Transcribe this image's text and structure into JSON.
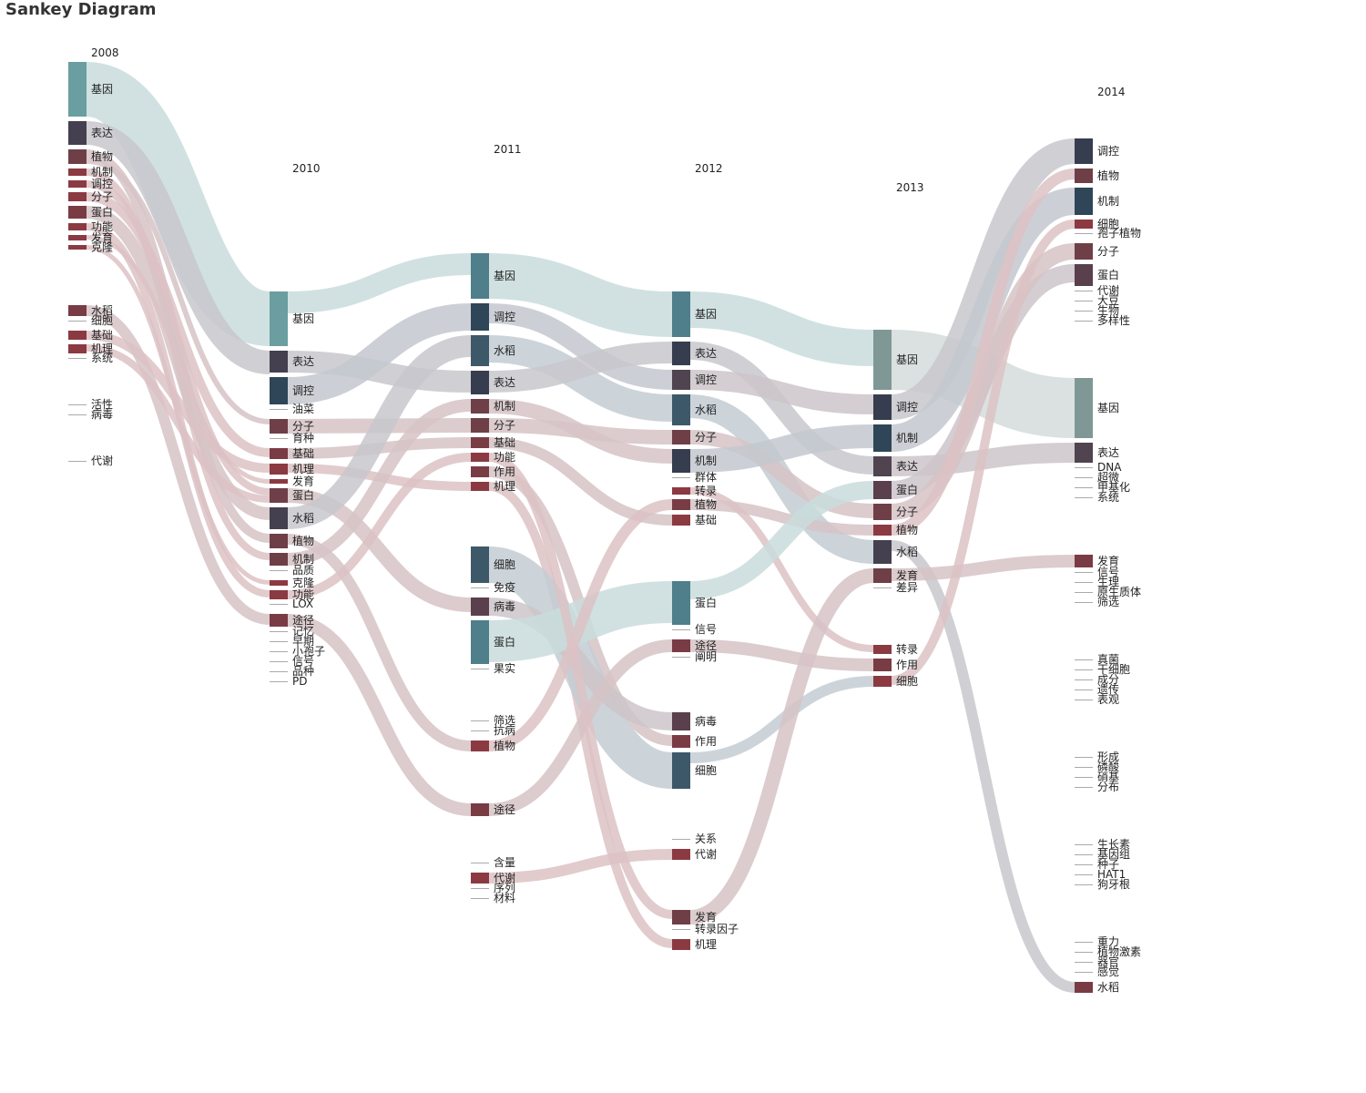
{
  "title": "Sankey Diagram",
  "columns": [
    {
      "year": "2008",
      "nodes": [
        {
          "name": "基因",
          "w": 60,
          "c": "#6a9ea0"
        },
        {
          "name": "表达",
          "w": 26,
          "c": "#44404f"
        },
        {
          "name": "植物",
          "w": 16,
          "c": "#6f3f48"
        },
        {
          "name": "机制",
          "w": 8,
          "c": "#8b3a42"
        },
        {
          "name": "调控",
          "w": 8,
          "c": "#8b3a42"
        },
        {
          "name": "分子",
          "w": 10,
          "c": "#8b3a42"
        },
        {
          "name": "蛋白",
          "w": 14,
          "c": "#7a3c44"
        },
        {
          "name": "功能",
          "w": 8,
          "c": "#8b3a42"
        },
        {
          "name": "发育",
          "w": 6,
          "c": "#8b3a42"
        },
        {
          "name": "克隆",
          "w": 5,
          "c": "#8b3a42"
        },
        {
          "name": "",
          "w": 0,
          "gap": 56
        },
        {
          "name": "水稻",
          "w": 12,
          "c": "#7a3c44"
        },
        {
          "name": "细胞",
          "w": 0
        },
        {
          "name": "基础",
          "w": 10,
          "c": "#8b3a42"
        },
        {
          "name": "机理",
          "w": 10,
          "c": "#8b3a42"
        },
        {
          "name": "系统",
          "w": 0
        },
        {
          "name": "",
          "w": 0,
          "gap": 40
        },
        {
          "name": "活性",
          "w": 0
        },
        {
          "name": "病毒",
          "w": 0
        },
        {
          "name": "",
          "w": 0,
          "gap": 40
        },
        {
          "name": "代谢",
          "w": 0
        }
      ]
    },
    {
      "year": "2010",
      "nodes": [
        {
          "name": "基因",
          "w": 60,
          "c": "#6a9ea0"
        },
        {
          "name": "表达",
          "w": 24,
          "c": "#44404f"
        },
        {
          "name": "调控",
          "w": 30,
          "c": "#2e4657"
        },
        {
          "name": "油菜",
          "w": 0
        },
        {
          "name": "分子",
          "w": 16,
          "c": "#6f3f48"
        },
        {
          "name": "育种",
          "w": 0
        },
        {
          "name": "基础",
          "w": 12,
          "c": "#7a3c44"
        },
        {
          "name": "机理",
          "w": 12,
          "c": "#8b3a42"
        },
        {
          "name": "发育",
          "w": 5,
          "c": "#8b3a42"
        },
        {
          "name": "蛋白",
          "w": 16,
          "c": "#6f3f48"
        },
        {
          "name": "水稻",
          "w": 24,
          "c": "#44404f"
        },
        {
          "name": "植物",
          "w": 16,
          "c": "#6f3f48"
        },
        {
          "name": "机制",
          "w": 14,
          "c": "#6f3f48"
        },
        {
          "name": "品质",
          "w": 0
        },
        {
          "name": "克隆",
          "w": 6,
          "c": "#8b3a42"
        },
        {
          "name": "功能",
          "w": 10,
          "c": "#8b3a42"
        },
        {
          "name": "LOX",
          "w": 0
        },
        {
          "name": "途径",
          "w": 14,
          "c": "#7a3c44"
        },
        {
          "name": "记忆",
          "w": 0
        },
        {
          "name": "早期",
          "w": 0
        },
        {
          "name": "小孢子",
          "w": 0
        },
        {
          "name": "信号",
          "w": 0
        },
        {
          "name": "品种",
          "w": 0
        },
        {
          "name": "PD",
          "w": 0
        }
      ]
    },
    {
      "year": "2011",
      "nodes": [
        {
          "name": "基因",
          "w": 50,
          "c": "#4e7f8a"
        },
        {
          "name": "调控",
          "w": 30,
          "c": "#2e4657"
        },
        {
          "name": "水稻",
          "w": 34,
          "c": "#3d5868"
        },
        {
          "name": "表达",
          "w": 26,
          "c": "#363d4f"
        },
        {
          "name": "机制",
          "w": 16,
          "c": "#6f3f48"
        },
        {
          "name": "分子",
          "w": 16,
          "c": "#6f3f48"
        },
        {
          "name": "基础",
          "w": 12,
          "c": "#7a3c44"
        },
        {
          "name": "功能",
          "w": 10,
          "c": "#8b3a42"
        },
        {
          "name": "作用",
          "w": 12,
          "c": "#7a3c44"
        },
        {
          "name": "机理",
          "w": 10,
          "c": "#8b3a42"
        },
        {
          "name": "",
          "w": 0,
          "gap": 56
        },
        {
          "name": "细胞",
          "w": 40,
          "c": "#3d5868"
        },
        {
          "name": "免疫",
          "w": 0
        },
        {
          "name": "病毒",
          "w": 20,
          "c": "#5a3f4c"
        },
        {
          "name": "蛋白",
          "w": 48,
          "c": "#4e7f8a"
        },
        {
          "name": "果实",
          "w": 0
        },
        {
          "name": "",
          "w": 0,
          "gap": 46
        },
        {
          "name": "筛选",
          "w": 0
        },
        {
          "name": "抗病",
          "w": 0
        },
        {
          "name": "植物",
          "w": 12,
          "c": "#8b3a42"
        },
        {
          "name": "",
          "w": 0,
          "gap": 52
        },
        {
          "name": "途径",
          "w": 14,
          "c": "#7a3c44"
        },
        {
          "name": "",
          "w": 0,
          "gap": 46
        },
        {
          "name": "含量",
          "w": 0
        },
        {
          "name": "代谢",
          "w": 12,
          "c": "#8b3a42"
        },
        {
          "name": "序列",
          "w": 0
        },
        {
          "name": "材料",
          "w": 0
        }
      ]
    },
    {
      "year": "2012",
      "nodes": [
        {
          "name": "基因",
          "w": 50,
          "c": "#4e7f8a"
        },
        {
          "name": "表达",
          "w": 26,
          "c": "#363d4f"
        },
        {
          "name": "调控",
          "w": 22,
          "c": "#4f4450"
        },
        {
          "name": "水稻",
          "w": 34,
          "c": "#3d5868"
        },
        {
          "name": "分子",
          "w": 16,
          "c": "#6f3f48"
        },
        {
          "name": "机制",
          "w": 26,
          "c": "#363d4f"
        },
        {
          "name": "群体",
          "w": 0
        },
        {
          "name": "转录",
          "w": 8,
          "c": "#8b3a42"
        },
        {
          "name": "植物",
          "w": 12,
          "c": "#7a3c44"
        },
        {
          "name": "基础",
          "w": 12,
          "c": "#8b3a42"
        },
        {
          "name": "",
          "w": 0,
          "gap": 56
        },
        {
          "name": "蛋白",
          "w": 48,
          "c": "#4e7f8a"
        },
        {
          "name": "信号",
          "w": 0
        },
        {
          "name": "途径",
          "w": 14,
          "c": "#7a3c44"
        },
        {
          "name": "阐明",
          "w": 0
        },
        {
          "name": "",
          "w": 0,
          "gap": 50
        },
        {
          "name": "病毒",
          "w": 20,
          "c": "#5a3f4c"
        },
        {
          "name": "作用",
          "w": 14,
          "c": "#7a3c44"
        },
        {
          "name": "细胞",
          "w": 40,
          "c": "#3d5868"
        },
        {
          "name": "",
          "w": 0,
          "gap": 50
        },
        {
          "name": "关系",
          "w": 0
        },
        {
          "name": "代谢",
          "w": 12,
          "c": "#8b3a42"
        },
        {
          "name": "",
          "w": 0,
          "gap": 50
        },
        {
          "name": "发育",
          "w": 16,
          "c": "#6f3f48"
        },
        {
          "name": "转录因子",
          "w": 0
        },
        {
          "name": "机理",
          "w": 12,
          "c": "#8b3a42"
        }
      ]
    },
    {
      "year": "2013",
      "nodes": [
        {
          "name": "基因",
          "w": 66,
          "c": "#7f9896"
        },
        {
          "name": "调控",
          "w": 28,
          "c": "#363d4f"
        },
        {
          "name": "机制",
          "w": 30,
          "c": "#2e4657"
        },
        {
          "name": "表达",
          "w": 22,
          "c": "#4f4450"
        },
        {
          "name": "蛋白",
          "w": 20,
          "c": "#5a3f4c"
        },
        {
          "name": "分子",
          "w": 18,
          "c": "#6f3f48"
        },
        {
          "name": "植物",
          "w": 12,
          "c": "#8b3a42"
        },
        {
          "name": "水稻",
          "w": 26,
          "c": "#44404f"
        },
        {
          "name": "发育",
          "w": 16,
          "c": "#6f3f48"
        },
        {
          "name": "差异",
          "w": 0
        },
        {
          "name": "",
          "w": 0,
          "gap": 52
        },
        {
          "name": "转录",
          "w": 10,
          "c": "#8b3a42"
        },
        {
          "name": "作用",
          "w": 14,
          "c": "#7a3c44"
        },
        {
          "name": "细胞",
          "w": 12,
          "c": "#8b3a42"
        }
      ]
    },
    {
      "year": "2014",
      "nodes": [
        {
          "name": "调控",
          "w": 28,
          "c": "#363d4f"
        },
        {
          "name": "植物",
          "w": 16,
          "c": "#6f3f48"
        },
        {
          "name": "机制",
          "w": 30,
          "c": "#2e4657"
        },
        {
          "name": "细胞",
          "w": 10,
          "c": "#8b3a42"
        },
        {
          "name": "孢子植物",
          "w": 0
        },
        {
          "name": "分子",
          "w": 18,
          "c": "#6f3f48"
        },
        {
          "name": "蛋白",
          "w": 24,
          "c": "#5a3f4c"
        },
        {
          "name": "代谢",
          "w": 0
        },
        {
          "name": "大豆",
          "w": 0
        },
        {
          "name": "生物",
          "w": 0
        },
        {
          "name": "多样性",
          "w": 0
        },
        {
          "name": "",
          "w": 0,
          "gap": 52
        },
        {
          "name": "基因",
          "w": 66,
          "c": "#7f9896"
        },
        {
          "name": "表达",
          "w": 22,
          "c": "#4f4450"
        },
        {
          "name": "DNA",
          "w": 0
        },
        {
          "name": "超微",
          "w": 0
        },
        {
          "name": "甲基化",
          "w": 0
        },
        {
          "name": "系统",
          "w": 0
        },
        {
          "name": "",
          "w": 0,
          "gap": 52
        },
        {
          "name": "发育",
          "w": 14,
          "c": "#7a3c44"
        },
        {
          "name": "信号",
          "w": 0
        },
        {
          "name": "生理",
          "w": 0
        },
        {
          "name": "原生质体",
          "w": 0
        },
        {
          "name": "筛选",
          "w": 0
        },
        {
          "name": "",
          "w": 0,
          "gap": 52
        },
        {
          "name": "真菌",
          "w": 0
        },
        {
          "name": "干细胞",
          "w": 0
        },
        {
          "name": "成分",
          "w": 0
        },
        {
          "name": "遗传",
          "w": 0
        },
        {
          "name": "表观",
          "w": 0
        },
        {
          "name": "",
          "w": 0,
          "gap": 52
        },
        {
          "name": "形成",
          "w": 0
        },
        {
          "name": "磷酸",
          "w": 0
        },
        {
          "name": "硝基",
          "w": 0
        },
        {
          "name": "分布",
          "w": 0
        },
        {
          "name": "",
          "w": 0,
          "gap": 52
        },
        {
          "name": "生长素",
          "w": 0
        },
        {
          "name": "基因组",
          "w": 0
        },
        {
          "name": "种子",
          "w": 0
        },
        {
          "name": "HAT1",
          "w": 0
        },
        {
          "name": "狗牙根",
          "w": 0
        },
        {
          "name": "",
          "w": 0,
          "gap": 52
        },
        {
          "name": "重力",
          "w": 0
        },
        {
          "name": "植物激素",
          "w": 0
        },
        {
          "name": "器官",
          "w": 0
        },
        {
          "name": "感觉",
          "w": 0
        },
        {
          "name": "水稻",
          "w": 12,
          "c": "#7a3c44"
        }
      ]
    }
  ],
  "links": [
    [
      "0:基因",
      "1:基因",
      60,
      "#c9dcdc"
    ],
    [
      "0:表达",
      "1:表达",
      26,
      "#c8c7cc"
    ],
    [
      "0:植物",
      "1:植物",
      10,
      "#d6c3c6"
    ],
    [
      "0:植物",
      "1:分子",
      6,
      "#d6c3c6"
    ],
    [
      "0:机制",
      "1:机制",
      8,
      "#dcc2c4"
    ],
    [
      "0:调控",
      "1:蛋白",
      8,
      "#dcc2c4"
    ],
    [
      "0:分子",
      "1:基础",
      10,
      "#dcc2c4"
    ],
    [
      "0:蛋白",
      "1:水稻",
      14,
      "#d6c3c6"
    ],
    [
      "0:功能",
      "1:功能",
      8,
      "#dcc2c4"
    ],
    [
      "0:发育",
      "1:发育",
      5,
      "#dcc2c4"
    ],
    [
      "0:克隆",
      "1:克隆",
      5,
      "#dcc2c4"
    ],
    [
      "0:水稻",
      "1:途径",
      12,
      "#d6c3c6"
    ],
    [
      "0:基础",
      "1:机理",
      10,
      "#dcc2c4"
    ],
    [
      "0:机理",
      "1:蛋白",
      8,
      "#dcc2c4"
    ],
    [
      "1:基因",
      "2:基因",
      24,
      "#c9dcdc"
    ],
    [
      "1:表达",
      "2:表达",
      24,
      "#c8c7cc"
    ],
    [
      "1:调控",
      "2:调控",
      30,
      "#c3c8cf"
    ],
    [
      "1:分子",
      "2:分子",
      16,
      "#d6c3c6"
    ],
    [
      "1:基础",
      "2:基础",
      12,
      "#d6c3c6"
    ],
    [
      "1:机理",
      "2:机理",
      10,
      "#dcc2c4"
    ],
    [
      "1:蛋白",
      "2:病毒",
      16,
      "#d6c3c6"
    ],
    [
      "1:水稻",
      "2:水稻",
      24,
      "#c8c7cc"
    ],
    [
      "1:植物",
      "2:植物",
      12,
      "#d6c3c6"
    ],
    [
      "1:机制",
      "2:机制",
      14,
      "#d6c3c6"
    ],
    [
      "1:功能",
      "2:功能",
      10,
      "#dcc2c4"
    ],
    [
      "1:途径",
      "2:途径",
      14,
      "#d6c3c6"
    ],
    [
      "2:基因",
      "3:基因",
      50,
      "#c9dcdc"
    ],
    [
      "2:调控",
      "3:调控",
      22,
      "#c3c8cf"
    ],
    [
      "2:水稻",
      "3:水稻",
      30,
      "#c3ccd3"
    ],
    [
      "2:表达",
      "3:表达",
      24,
      "#c8c7cc"
    ],
    [
      "2:机制",
      "3:机制",
      16,
      "#d6c3c6"
    ],
    [
      "2:分子",
      "3:分子",
      16,
      "#d6c3c6"
    ],
    [
      "2:基础",
      "3:基础",
      12,
      "#d6c3c6"
    ],
    [
      "2:作用",
      "3:作用",
      12,
      "#d6c3c6"
    ],
    [
      "2:机理",
      "3:机理",
      10,
      "#dcc2c4"
    ],
    [
      "2:细胞",
      "3:细胞",
      40,
      "#c3ccd3"
    ],
    [
      "2:病毒",
      "3:病毒",
      20,
      "#cdc4c9"
    ],
    [
      "2:蛋白",
      "3:蛋白",
      46,
      "#c9dcdc"
    ],
    [
      "2:植物",
      "3:植物",
      12,
      "#dcc2c4"
    ],
    [
      "2:途径",
      "3:途径",
      14,
      "#d6c3c6"
    ],
    [
      "2:代谢",
      "3:代谢",
      12,
      "#dcc2c4"
    ],
    [
      "2:功能",
      "3:发育",
      10,
      "#dcc2c4"
    ],
    [
      "3:基因",
      "4:基因",
      40,
      "#c9dcdc"
    ],
    [
      "3:表达",
      "4:表达",
      20,
      "#c8c7cc"
    ],
    [
      "3:调控",
      "4:调控",
      22,
      "#cdc4c9"
    ],
    [
      "3:水稻",
      "4:水稻",
      26,
      "#c3ccd3"
    ],
    [
      "3:分子",
      "4:分子",
      16,
      "#d6c3c6"
    ],
    [
      "3:机制",
      "4:机制",
      26,
      "#c3c8cf"
    ],
    [
      "3:植物",
      "4:植物",
      12,
      "#d6c3c6"
    ],
    [
      "3:转录",
      "4:转录",
      8,
      "#dcc2c4"
    ],
    [
      "3:蛋白",
      "4:蛋白",
      20,
      "#c9dcdc"
    ],
    [
      "3:途径",
      "4:作用",
      14,
      "#d6c3c6"
    ],
    [
      "3:细胞",
      "4:细胞",
      12,
      "#c3ccd3"
    ],
    [
      "3:发育",
      "4:发育",
      16,
      "#d6c3c6"
    ],
    [
      "4:基因",
      "5:基因",
      66,
      "#d5dcdb"
    ],
    [
      "4:调控",
      "5:调控",
      28,
      "#c8c7cc"
    ],
    [
      "4:机制",
      "5:机制",
      30,
      "#c3c8cf"
    ],
    [
      "4:表达",
      "5:表达",
      22,
      "#cdc4c9"
    ],
    [
      "4:蛋白",
      "5:蛋白",
      20,
      "#cdc4c9"
    ],
    [
      "4:分子",
      "5:分子",
      18,
      "#d6c3c6"
    ],
    [
      "4:植物",
      "5:植物",
      12,
      "#dcc2c4"
    ],
    [
      "4:水稻",
      "5:水稻",
      12,
      "#c8c7cc"
    ],
    [
      "4:发育",
      "5:发育",
      14,
      "#d6c3c6"
    ],
    [
      "4:细胞",
      "5:细胞",
      10,
      "#dcc2c4"
    ]
  ]
}
